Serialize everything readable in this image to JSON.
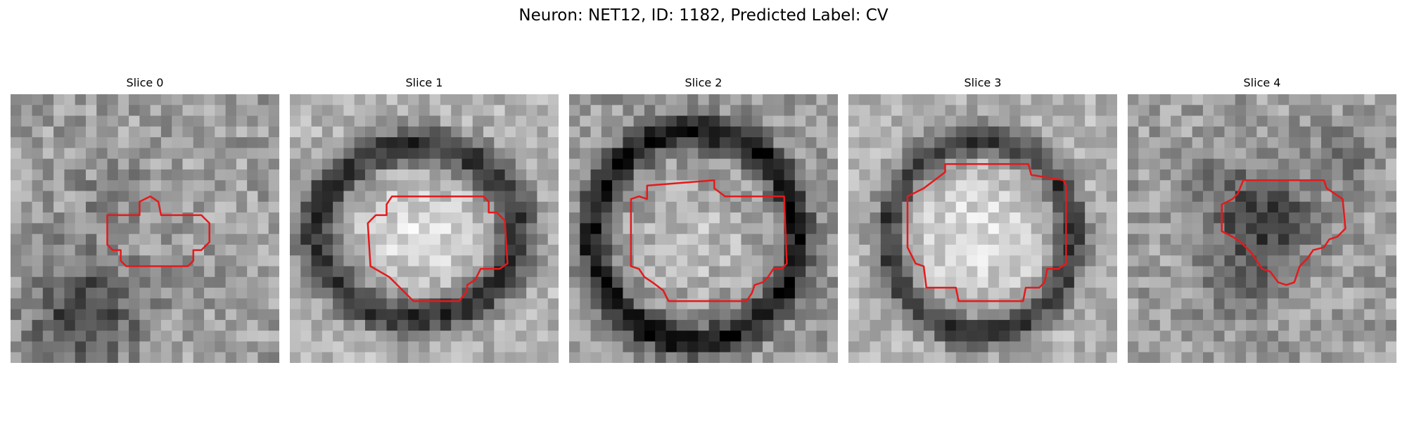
{
  "figure": {
    "suptitle": "Neuron: NET12, ID: 1182, Predicted Label: CV",
    "contour_color": "#e41a1c",
    "colormap": "gray",
    "slices": [
      {
        "title": "Slice 0"
      },
      {
        "title": "Slice 1"
      },
      {
        "title": "Slice 2"
      },
      {
        "title": "Slice 3"
      },
      {
        "title": "Slice 4"
      }
    ]
  }
}
